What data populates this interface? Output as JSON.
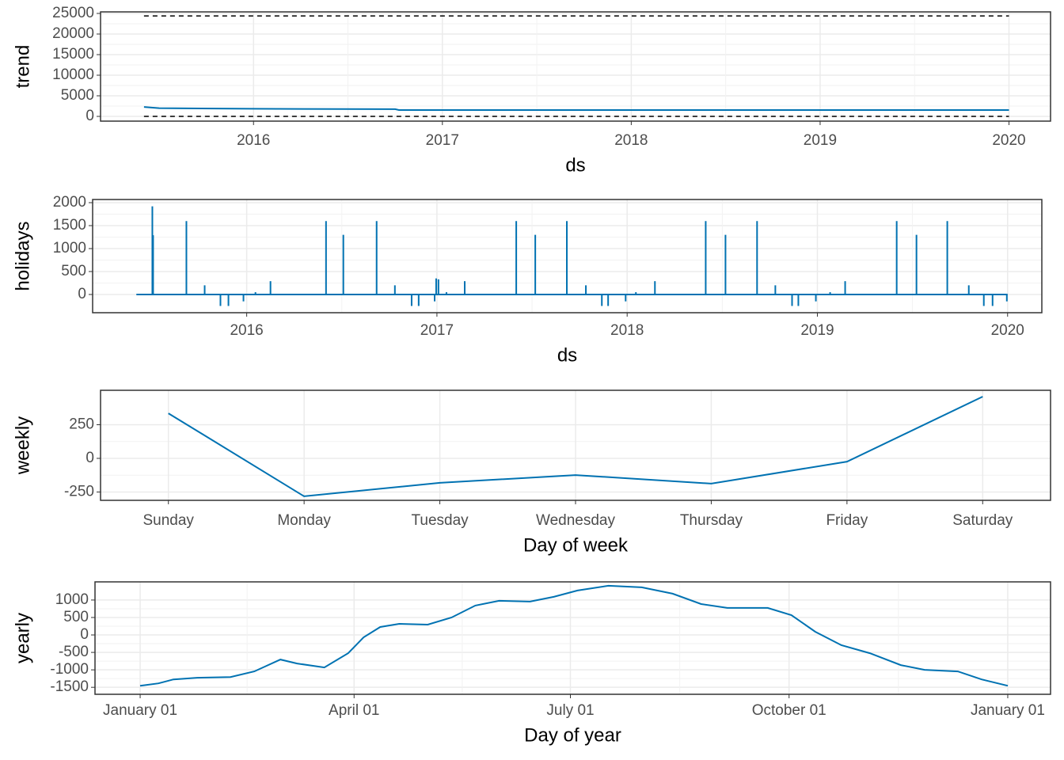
{
  "chart_data": [
    {
      "type": "line",
      "xlabel": "ds",
      "ylabel": "trend",
      "color": "#0072B2",
      "grid": true,
      "x": [
        2015.42,
        2015.5,
        2016.0,
        2016.75,
        2016.77,
        2020.0
      ],
      "values": [
        2300,
        2000,
        1850,
        1750,
        1550,
        1550
      ],
      "cap": 24400,
      "floor": 0,
      "xlim": [
        2015.19,
        2020.22
      ],
      "xticks": [
        2016,
        2017,
        2018,
        2019,
        2020
      ],
      "ylim": [
        -1150,
        25380
      ],
      "yticks": [
        0,
        5000,
        10000,
        15000,
        20000,
        25000
      ]
    },
    {
      "type": "stem",
      "xlabel": "ds",
      "ylabel": "holidays",
      "color": "#0072B2",
      "grid": true,
      "x": [
        2015.42,
        2015.504,
        2015.508,
        2015.683,
        2015.779,
        2015.862,
        2015.904,
        2015.983,
        2016.046,
        2016.125,
        2016.417,
        2016.508,
        2016.683,
        2016.779,
        2016.867,
        2016.904,
        2016.988,
        2016.996,
        2017.008,
        2017.05,
        2017.146,
        2017.417,
        2017.517,
        2017.683,
        2017.783,
        2017.867,
        2017.9,
        2017.992,
        2018.046,
        2018.146,
        2018.413,
        2018.517,
        2018.683,
        2018.779,
        2018.867,
        2018.9,
        2018.992,
        2019.067,
        2019.146,
        2019.417,
        2019.521,
        2019.683,
        2019.796,
        2019.875,
        2019.921,
        2019.996,
        2020.0
      ],
      "values": [
        0,
        1920,
        1290,
        1600,
        200,
        -250,
        -250,
        -150,
        50,
        290,
        1600,
        1300,
        1600,
        200,
        -250,
        -250,
        -150,
        350,
        330,
        50,
        290,
        1600,
        1300,
        1600,
        200,
        -250,
        -250,
        -150,
        50,
        290,
        1600,
        1300,
        1600,
        200,
        -250,
        -250,
        -150,
        50,
        290,
        1600,
        1300,
        1600,
        200,
        -250,
        -250,
        -150,
        0
      ],
      "xlim": [
        2015.19,
        2020.18
      ],
      "xticks": [
        2016,
        2017,
        2018,
        2019,
        2020
      ],
      "ylim": [
        -397,
        2069
      ],
      "yticks": [
        0,
        500,
        1000,
        1500,
        2000
      ]
    },
    {
      "type": "line",
      "xlabel": "Day of week",
      "ylabel": "weekly",
      "color": "#0072B2",
      "grid": true,
      "categories": [
        "Sunday",
        "Monday",
        "Tuesday",
        "Wednesday",
        "Thursday",
        "Friday",
        "Saturday"
      ],
      "values": [
        335,
        -282,
        -182,
        -124,
        -188,
        -24,
        459
      ],
      "ylim": [
        -312,
        506
      ],
      "yticks": [
        -250,
        0,
        250
      ]
    },
    {
      "type": "line",
      "xlabel": "Day of year",
      "ylabel": "yearly",
      "color": "#0072B2",
      "grid": true,
      "x": [
        0,
        7.7,
        14,
        24,
        38,
        48,
        59,
        66,
        77.5,
        87.5,
        94,
        101,
        109,
        121,
        131,
        141,
        151,
        164,
        174,
        184,
        197,
        211,
        224,
        236,
        247,
        264,
        274,
        284,
        295,
        307,
        320,
        330,
        344,
        354,
        365
      ],
      "values": [
        -1455,
        -1386,
        -1273,
        -1227,
        -1205,
        -1045,
        -705,
        -818,
        -932,
        -523,
        -68,
        227,
        318,
        295,
        500,
        841,
        977,
        955,
        1091,
        1273,
        1409,
        1364,
        1182,
        886,
        773,
        773,
        568,
        91,
        -295,
        -523,
        -864,
        -1000,
        -1045,
        -1273,
        -1455
      ],
      "xlim": [
        -19,
        383
      ],
      "xticks": [
        {
          "value": 0,
          "label": "January 01"
        },
        {
          "value": 90,
          "label": "April 01"
        },
        {
          "value": 181,
          "label": "July 01"
        },
        {
          "value": 273,
          "label": "October 01"
        },
        {
          "value": 365,
          "label": "January 01"
        }
      ],
      "ylim": [
        -1700,
        1520
      ],
      "yticks": [
        -1500,
        -1000,
        -500,
        0,
        500,
        1000
      ]
    }
  ]
}
